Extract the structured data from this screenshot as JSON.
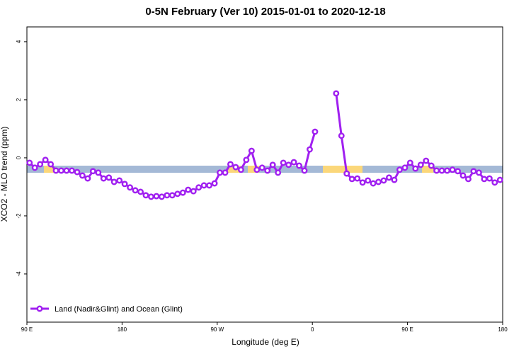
{
  "chart_data": {
    "type": "line",
    "title": "0-5N February (Ver 10)   2015-01-01 to 2020-12-18",
    "x_label": "Longitude (deg E)",
    "y_label": "XCO2 - MLO trend (ppm)",
    "x": [
      92.5,
      97.5,
      102.5,
      107.5,
      112.5,
      117.5,
      122.5,
      127.5,
      132.5,
      137.5,
      142.5,
      147.5,
      152.5,
      157.5,
      162.5,
      167.5,
      172.5,
      177.5,
      182.5,
      187.5,
      192.5,
      197.5,
      202.5,
      207.5,
      212.5,
      217.5,
      222.5,
      227.5,
      232.5,
      237.5,
      242.5,
      247.5,
      252.5,
      257.5,
      262.5,
      267.5,
      272.5,
      277.5,
      282.5,
      287.5,
      292.5,
      297.5,
      302.5,
      307.5,
      312.5,
      317.5,
      322.5,
      327.5,
      332.5,
      337.5,
      342.5,
      347.5,
      352.5,
      357.5,
      362.5,
      367.5,
      372.5,
      377.5,
      382.5,
      387.5,
      392.5,
      397.5,
      402.5,
      407.5,
      412.5,
      417.5,
      422.5,
      427.5,
      432.5,
      437.5,
      442.5,
      447.5,
      452.5,
      457.5,
      462.5,
      467.5,
      472.5,
      477.5,
      482.5,
      487.5,
      492.5,
      497.5,
      502.5,
      507.5,
      512.5,
      517.5,
      522.5,
      527.5,
      532.5,
      537.5
    ],
    "series": [
      {
        "name": "Land (Nadir&Glint) and Ocean (Glint)",
        "color": "#a020f0",
        "values": [
          -0.17,
          -0.34,
          -0.22,
          -0.07,
          -0.22,
          -0.44,
          -0.44,
          -0.44,
          -0.44,
          -0.49,
          -0.61,
          -0.71,
          -0.46,
          -0.51,
          -0.71,
          -0.68,
          -0.83,
          -0.78,
          -0.9,
          -1.02,
          -1.12,
          -1.17,
          -1.29,
          -1.34,
          -1.32,
          -1.34,
          -1.29,
          -1.29,
          -1.24,
          -1.2,
          -1.1,
          -1.15,
          -1.02,
          -0.95,
          -0.95,
          -0.88,
          -0.51,
          -0.51,
          -0.22,
          -0.32,
          -0.41,
          -0.07,
          0.24,
          -0.41,
          -0.34,
          -0.44,
          -0.24,
          -0.51,
          -0.17,
          -0.24,
          -0.15,
          -0.27,
          -0.44,
          0.29,
          0.9,
          null,
          null,
          null,
          2.22,
          0.76,
          -0.54,
          -0.73,
          -0.71,
          -0.85,
          -0.78,
          -0.88,
          -0.83,
          -0.78,
          -0.68,
          -0.76,
          -0.41,
          -0.34,
          -0.17,
          -0.37,
          -0.24,
          -0.1,
          -0.27,
          -0.44,
          -0.44,
          -0.44,
          -0.41,
          -0.46,
          -0.61,
          -0.73,
          -0.46,
          -0.51,
          -0.73,
          -0.71,
          -0.85,
          -0.76
        ]
      }
    ],
    "xlim": [
      90,
      540
    ],
    "xticks": [
      {
        "value": 90,
        "label": "90 E"
      },
      180,
      {
        "value": 270,
        "label": "90 W"
      },
      {
        "value": 360,
        "label": "0"
      },
      {
        "value": 450,
        "label": "90 E"
      },
      {
        "value": 540,
        "label": "180"
      }
    ],
    "ylim": [
      -5.66,
      4.51
    ],
    "yticks": [
      -4,
      -2,
      0,
      2,
      4
    ],
    "legend": "bottomleft"
  }
}
